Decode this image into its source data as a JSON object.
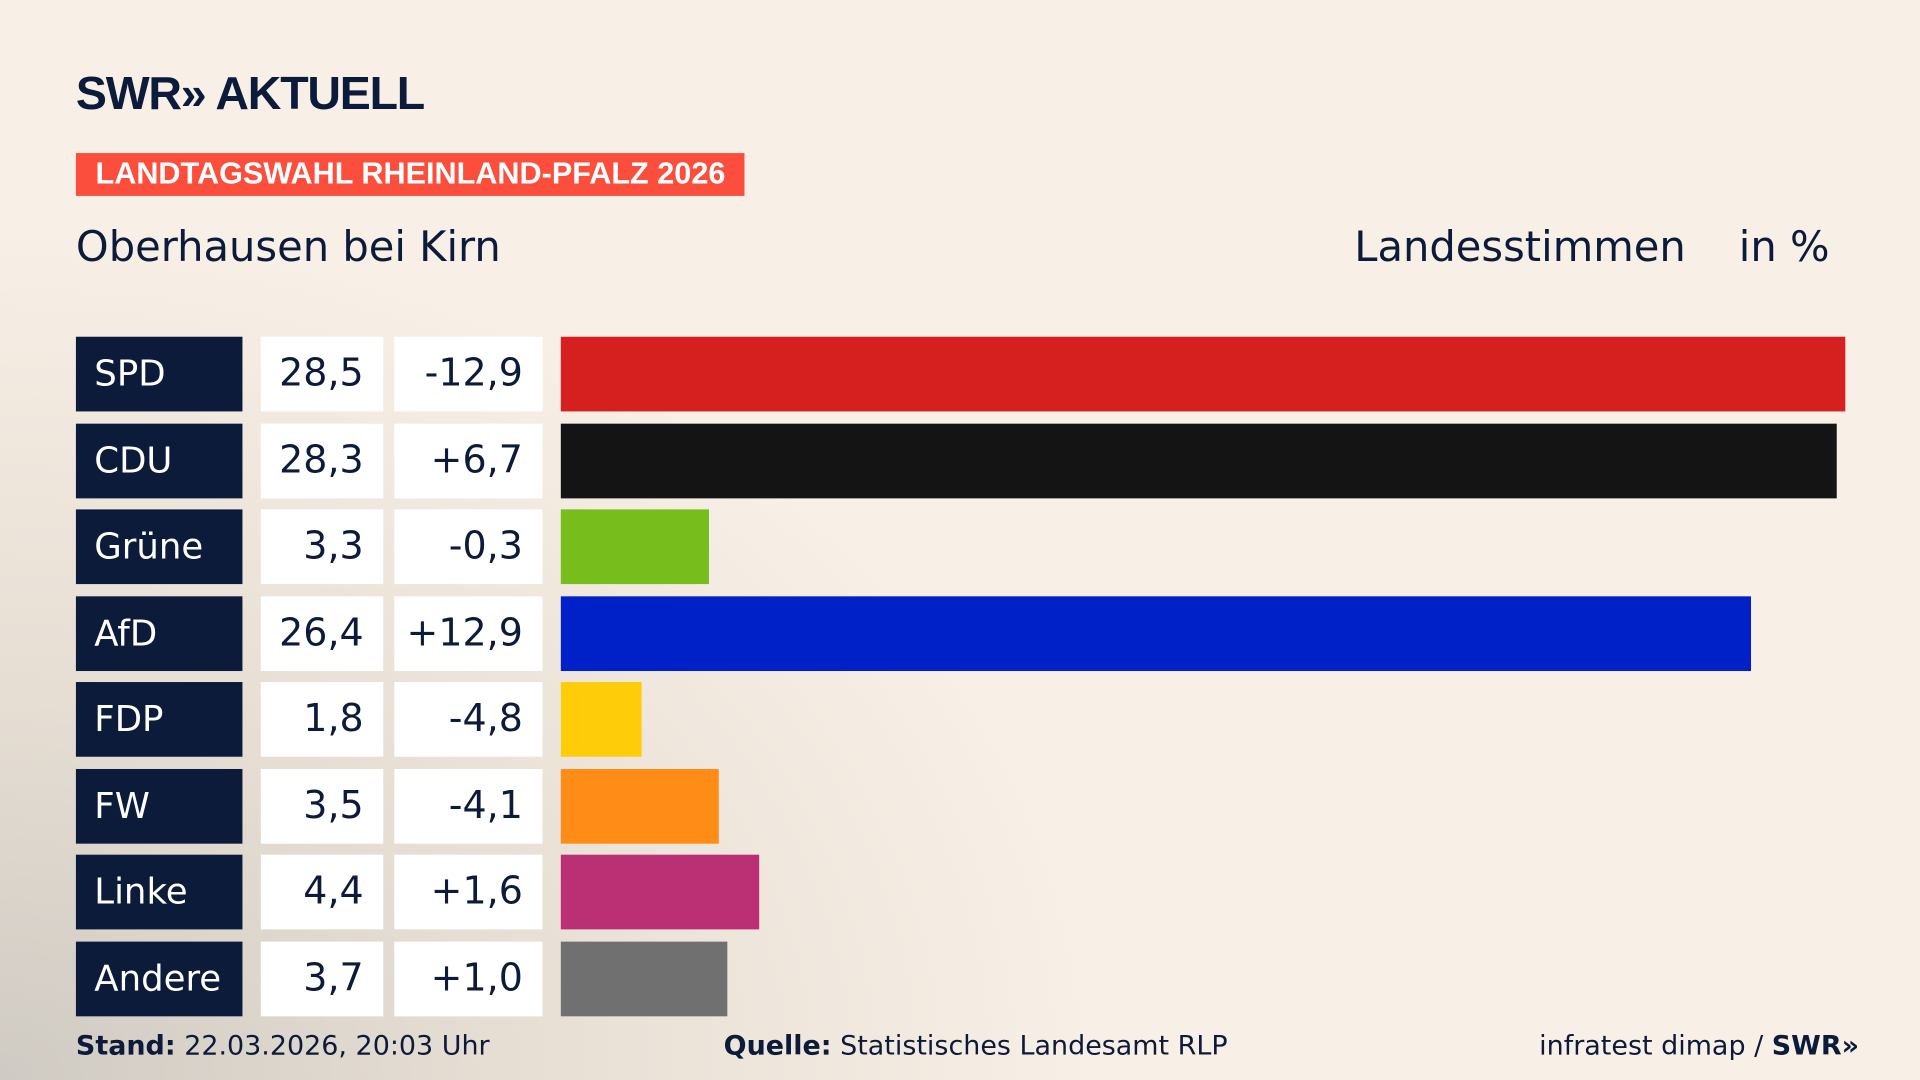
{
  "header": {
    "logo": "SWR» AKTUELL",
    "banner": "LANDTAGSWAHL RHEINLAND-PFALZ 2026",
    "place": "Oberhausen bei Kirn",
    "vote_type": "Landesstimmen",
    "unit": "in %"
  },
  "chart_data": {
    "type": "bar",
    "orientation": "horizontal",
    "categories": [
      "SPD",
      "CDU",
      "Grüne",
      "AfD",
      "FDP",
      "FW",
      "Linke",
      "Andere"
    ],
    "values": [
      28.5,
      28.3,
      3.3,
      26.4,
      1.8,
      3.5,
      4.4,
      3.7
    ],
    "value_labels": [
      "28,5",
      "28,3",
      "3,3",
      "26,4",
      "1,8",
      "3,5",
      "4,4",
      "3,7"
    ],
    "changes": [
      -12.9,
      6.7,
      -0.3,
      12.9,
      -4.8,
      -4.1,
      1.6,
      1.0
    ],
    "change_labels": [
      "-12,9",
      "+6,7",
      "-0,3",
      "+12,9",
      "-4,8",
      "-4,1",
      "+1,6",
      "+1,0"
    ],
    "colors": [
      "#d62020",
      "#141414",
      "#77bd1c",
      "#0021c8",
      "#ffcc0a",
      "#ff8c17",
      "#bb2f74",
      "#707070"
    ]
  },
  "footer": {
    "stand_label": "Stand:",
    "stand_value": "22.03.2026, 20:03 Uhr",
    "source_label": "Quelle:",
    "source_value": "Statistisches Landesamt RLP",
    "credit": "infratest dimap / ",
    "credit_logo": "SWR»"
  }
}
